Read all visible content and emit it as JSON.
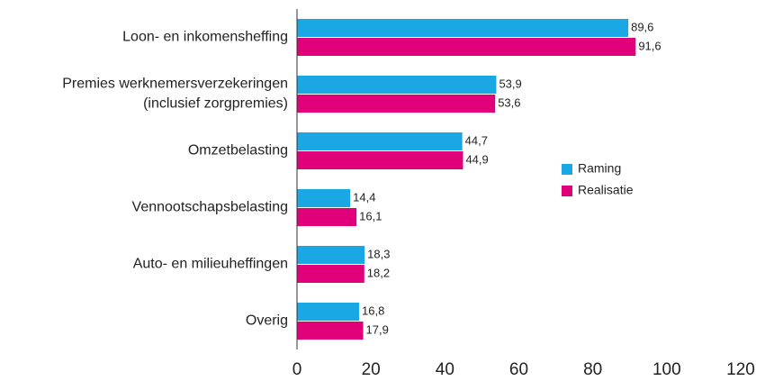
{
  "chart_data": {
    "type": "barh",
    "categories": [
      "Loon- en inkomensheffing",
      "Premies werknemersverzekeringen\n(inclusief zorgpremies)",
      "Omzetbelasting",
      "Vennootschapsbelasting",
      "Auto- en milieuheffingen",
      "Overig"
    ],
    "series": [
      {
        "name": "Raming",
        "color": "#1aa7e4",
        "values": [
          89.6,
          53.9,
          44.7,
          14.4,
          18.3,
          16.8
        ],
        "value_labels": [
          "89,6",
          "53,9",
          "44,7",
          "14,4",
          "18,3",
          "16,8"
        ]
      },
      {
        "name": "Realisatie",
        "color": "#e0007a",
        "values": [
          91.6,
          53.6,
          44.9,
          16.1,
          18.2,
          17.9
        ],
        "value_labels": [
          "91,6",
          "53,6",
          "44,9",
          "16,1",
          "18,2",
          "17,9"
        ]
      }
    ],
    "xlim": [
      0,
      120
    ],
    "xticks": [
      0,
      20,
      40,
      60,
      80,
      100,
      120
    ],
    "legend": "right"
  }
}
